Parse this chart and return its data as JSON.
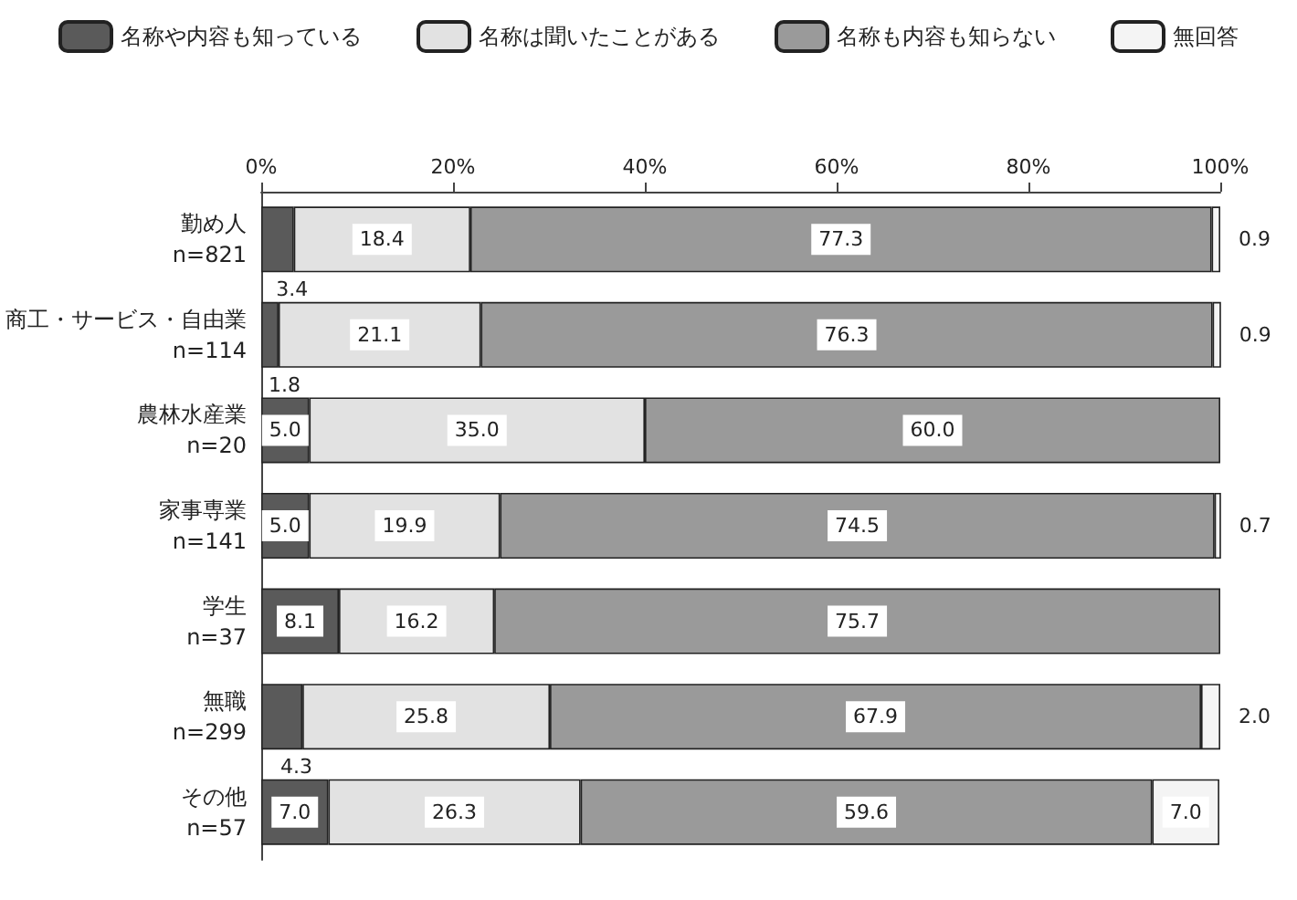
{
  "chart_data": {
    "type": "bar",
    "orientation": "horizontal",
    "stacked": true,
    "legend": "top",
    "grid": false,
    "categories": [
      "勤め人\nn=821",
      "商工・サービス・自由業\nn=114",
      "農林水産業\nn=20",
      "家事専業\nn=141",
      "学生\nn=37",
      "無職\nn=299",
      "その他\nn=57"
    ],
    "series": [
      {
        "name": "名称や内容も知っている",
        "color": "#5a5a5a",
        "values": [
          3.4,
          1.8,
          5.0,
          5.0,
          8.1,
          4.3,
          7.0
        ],
        "value_labels": [
          "3.4",
          "1.8",
          "5.0",
          "5.0",
          "8.1",
          "4.3",
          "7.0"
        ]
      },
      {
        "name": "名称は聞いたことがある",
        "color": "#e2e2e2",
        "values": [
          18.4,
          21.1,
          35.0,
          19.9,
          16.2,
          25.8,
          26.3
        ],
        "value_labels": [
          "18.4",
          "21.1",
          "35.0",
          "19.9",
          "16.2",
          "25.8",
          "26.3"
        ]
      },
      {
        "name": "名称も内容も知らない",
        "color": "#9a9a9a",
        "values": [
          77.3,
          76.3,
          60.0,
          74.5,
          75.7,
          67.9,
          59.6
        ],
        "value_labels": [
          "77.3",
          "76.3",
          "60.0",
          "74.5",
          "75.7",
          "67.9",
          "59.6"
        ]
      },
      {
        "name": "無回答",
        "color": "#f4f4f4",
        "values": [
          0.9,
          0.9,
          0,
          0.7,
          0,
          2.0,
          7.0
        ],
        "value_labels": [
          "0.9",
          "0.9",
          null,
          "0.7",
          null,
          "2.0",
          "7.0"
        ]
      }
    ],
    "xlim": [
      0,
      100
    ],
    "xticks": [
      {
        "value": 0,
        "label": "0%"
      },
      {
        "value": 20,
        "label": "20%"
      },
      {
        "value": 40,
        "label": "40%"
      },
      {
        "value": 60,
        "label": "60%"
      },
      {
        "value": 80,
        "label": "80%"
      },
      {
        "value": 100,
        "label": "100%"
      }
    ]
  }
}
